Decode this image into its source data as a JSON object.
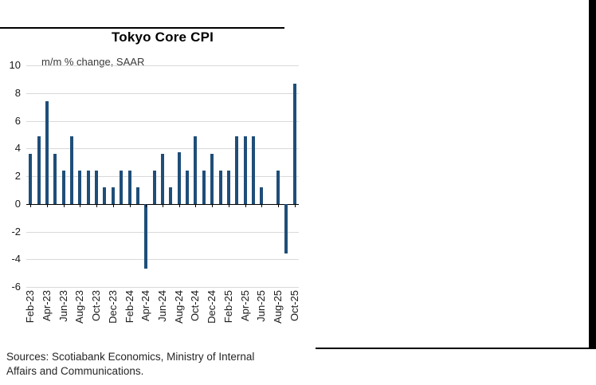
{
  "page": {
    "sources_line1": "Sources: Scotiabank Economics, Ministry of Internal",
    "sources_line2": "Affairs and Communications."
  },
  "chart_data": {
    "type": "bar",
    "title": "Tokyo Core CPI",
    "subtitle": "m/m % change, SAAR",
    "x": [
      "Feb-23",
      "Mar-23",
      "Apr-23",
      "May-23",
      "Jun-23",
      "Jul-23",
      "Aug-23",
      "Sep-23",
      "Oct-23",
      "Nov-23",
      "Dec-23",
      "Jan-24",
      "Feb-24",
      "Mar-24",
      "Apr-24",
      "May-24",
      "Jun-24",
      "Jul-24",
      "Aug-24",
      "Sep-24",
      "Oct-24",
      "Nov-24",
      "Dec-24",
      "Jan-25",
      "Feb-25",
      "Mar-25",
      "Apr-25",
      "May-25",
      "Jun-25",
      "Jul-25",
      "Aug-25",
      "Sep-25",
      "Oct-25"
    ],
    "values": [
      3.6,
      4.9,
      7.4,
      3.6,
      2.4,
      4.9,
      2.4,
      2.4,
      2.4,
      1.2,
      1.2,
      2.4,
      2.4,
      1.2,
      -4.7,
      2.4,
      3.6,
      1.2,
      3.7,
      2.4,
      4.9,
      2.4,
      3.6,
      2.4,
      2.4,
      4.9,
      4.9,
      4.9,
      1.2,
      0,
      2.4,
      -3.6,
      8.7
    ],
    "xtick_labels": [
      "Feb-23",
      "Apr-23",
      "Jun-23",
      "Aug-23",
      "Oct-23",
      "Dec-23",
      "Feb-24",
      "Apr-24",
      "Jun-24",
      "Aug-24",
      "Oct-24",
      "Dec-24",
      "Feb-25",
      "Apr-25",
      "Jun-25",
      "Aug-25",
      "Oct-25"
    ],
    "xtick_every": 2,
    "yticks": [
      10,
      8,
      6,
      4,
      2,
      0,
      -2,
      -4,
      -6
    ],
    "ylim": [
      -6,
      10
    ],
    "bar_color": "#1f4e79",
    "grid": "horizontal",
    "legend": "none",
    "xlabel": "",
    "ylabel": ""
  }
}
